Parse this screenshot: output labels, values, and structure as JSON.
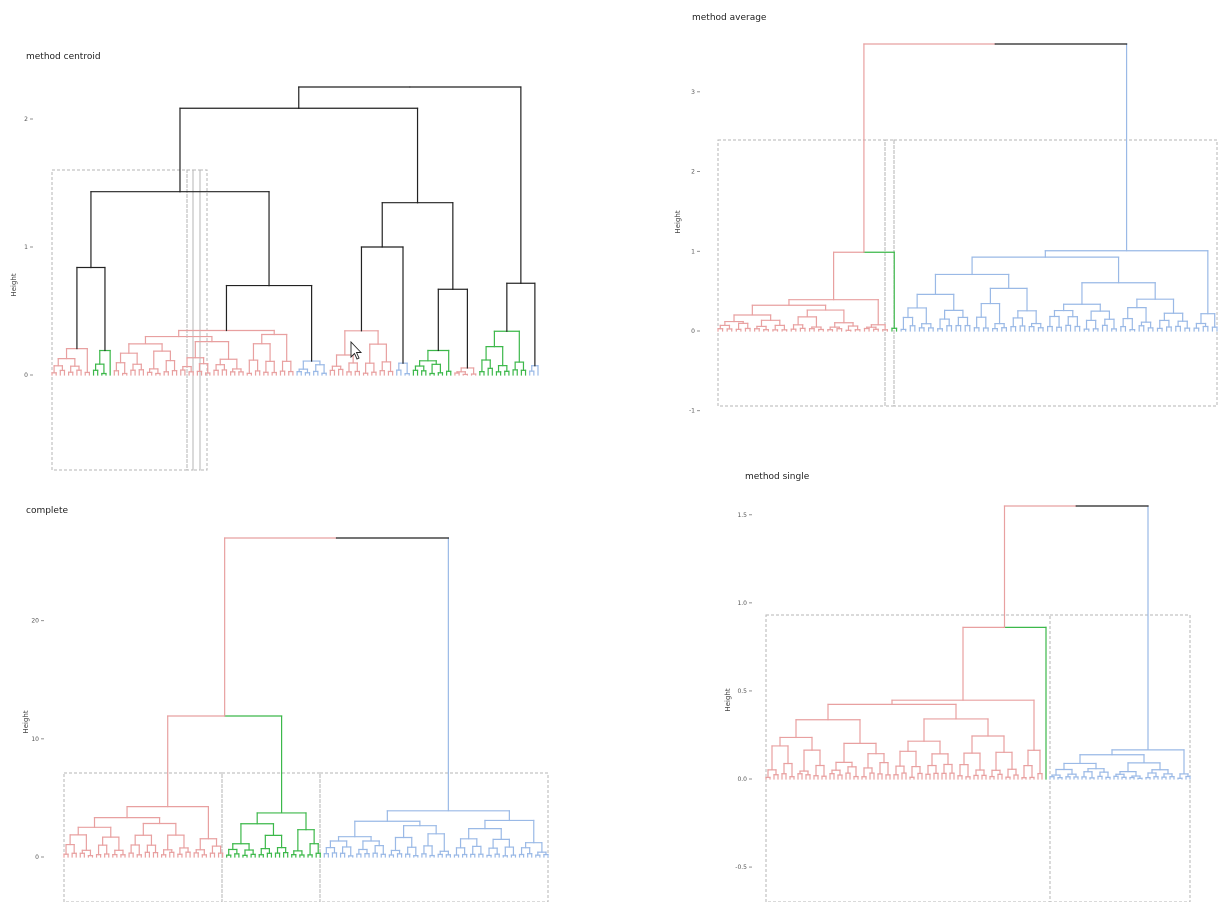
{
  "colors": {
    "red": "#e8a0a0",
    "green": "#3cb84a",
    "blue": "#9ab9e6",
    "black": "#222222",
    "box": "#b5b5b5"
  },
  "chart_data": [
    {
      "id": "centroid",
      "type": "dendrogram",
      "title": "method centroid",
      "ylabel": "Height",
      "yticks": [
        0,
        1,
        2
      ],
      "ylim": [
        -0.75,
        2.3
      ],
      "clusters": [
        {
          "color": "red",
          "leaves": 10
        },
        {
          "color": "green",
          "leaves": 5
        },
        {
          "color": "red",
          "leaves": 44
        },
        {
          "color": "blue",
          "leaves": 8
        },
        {
          "color": "red",
          "leaves": 16
        },
        {
          "color": "blue",
          "leaves": 4
        },
        {
          "color": "green",
          "leaves": 10
        },
        {
          "color": "red",
          "leaves": 6
        },
        {
          "color": "green",
          "leaves": 12
        },
        {
          "color": "blue",
          "leaves": 3
        }
      ],
      "root_height": 2.25,
      "top_color": "black",
      "inner_color": "black",
      "boxes": 4
    },
    {
      "id": "average",
      "type": "dendrogram",
      "title": "method average",
      "ylabel": "Height",
      "yticks": [
        -1,
        0,
        1,
        2,
        3
      ],
      "ylim": [
        -1,
        3.7
      ],
      "clusters": [
        {
          "color": "red",
          "leaves": 38
        },
        {
          "color": "green",
          "leaves": 2
        },
        {
          "color": "blue",
          "leaves": 70
        }
      ],
      "root_height": 3.6,
      "top_color": "black",
      "boxes": 3
    },
    {
      "id": "complete",
      "type": "dendrogram",
      "title": "complete",
      "ylabel": "Height",
      "yticks": [
        0,
        10,
        20
      ],
      "ylim": [
        -3,
        27
      ],
      "clusters": [
        {
          "color": "red",
          "leaves": 40
        },
        {
          "color": "green",
          "leaves": 24
        },
        {
          "color": "blue",
          "leaves": 56
        }
      ],
      "root_height": 27,
      "top_color": "black",
      "boxes": 3
    },
    {
      "id": "single",
      "type": "dendrogram",
      "title": "method single",
      "ylabel": "Height",
      "yticks": [
        -0.5,
        0.0,
        0.5,
        1.0,
        1.5
      ],
      "ytick_labels": [
        "-0.5",
        "0.0",
        "0.5",
        "1.0",
        "1.5"
      ],
      "ylim": [
        -0.6,
        1.6
      ],
      "clusters": [
        {
          "color": "red",
          "leaves": 70
        },
        {
          "color": "green",
          "leaves": 1
        },
        {
          "color": "blue",
          "leaves": 36
        }
      ],
      "root_height": 1.55,
      "top_color": "black",
      "boxes": 2
    }
  ]
}
